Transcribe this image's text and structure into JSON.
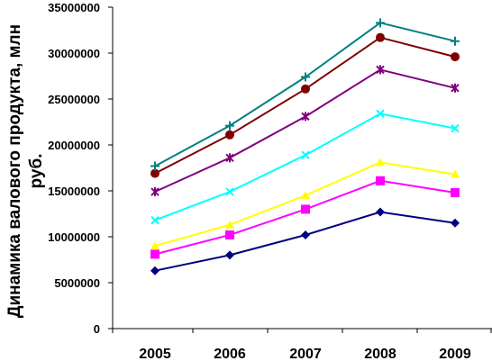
{
  "chart_data": {
    "type": "line",
    "title": "",
    "ylabel": "Динамика валового продукта, млн руб.",
    "ylabel_lines": [
      "Динамика валового продукта, млн",
      "руб."
    ],
    "xlabel": "",
    "categories": [
      "2005",
      "2006",
      "2007",
      "2008",
      "2009"
    ],
    "ylim": [
      0,
      35000000
    ],
    "yticks": [
      0,
      5000000,
      10000000,
      15000000,
      20000000,
      25000000,
      30000000,
      35000000
    ],
    "ytick_labels": [
      "0",
      "5000000",
      "10000000",
      "15000000",
      "20000000",
      "25000000",
      "30000000",
      "35000000"
    ],
    "grid": false,
    "legend": "none",
    "series": [
      {
        "color": "#000080",
        "marker": "diamond",
        "values": [
          6300000,
          8000000,
          10200000,
          12700000,
          11500000
        ]
      },
      {
        "color": "#ff00ff",
        "marker": "square",
        "values": [
          8100000,
          10200000,
          13000000,
          16100000,
          14800000
        ]
      },
      {
        "color": "#ffff00",
        "marker": "triangle",
        "values": [
          9000000,
          11300000,
          14500000,
          18100000,
          16800000
        ]
      },
      {
        "color": "#00ffff",
        "marker": "x",
        "values": [
          11800000,
          14900000,
          18900000,
          23400000,
          21800000
        ]
      },
      {
        "color": "#800080",
        "marker": "star",
        "values": [
          14900000,
          18600000,
          23100000,
          28200000,
          26200000
        ]
      },
      {
        "color": "#800000",
        "marker": "circle",
        "values": [
          16900000,
          21100000,
          26100000,
          31700000,
          29600000
        ]
      },
      {
        "color": "#008080",
        "marker": "plus",
        "values": [
          17700000,
          22100000,
          27400000,
          33300000,
          31300000
        ]
      }
    ]
  }
}
